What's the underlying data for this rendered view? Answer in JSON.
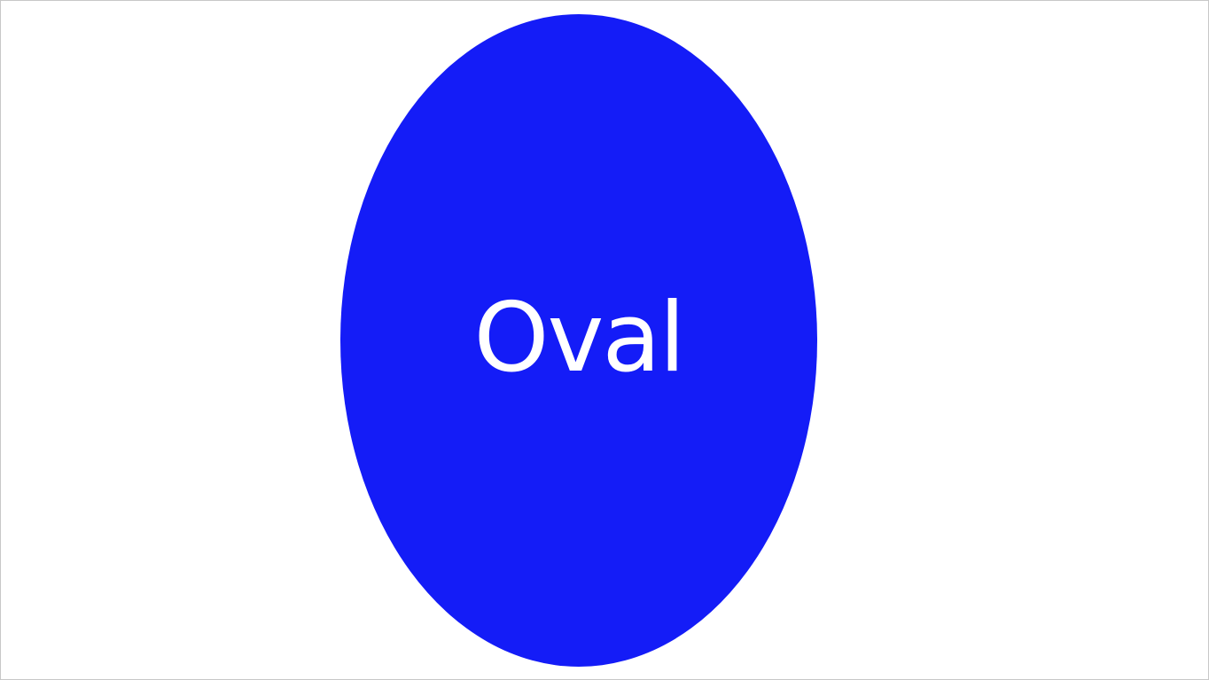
{
  "shape": {
    "label": "Oval",
    "fill_color": "#141CF7",
    "text_color": "#FFFFFF"
  },
  "slide": {
    "background_color": "#FFFFFF",
    "border_color": "#C8C8C8"
  }
}
